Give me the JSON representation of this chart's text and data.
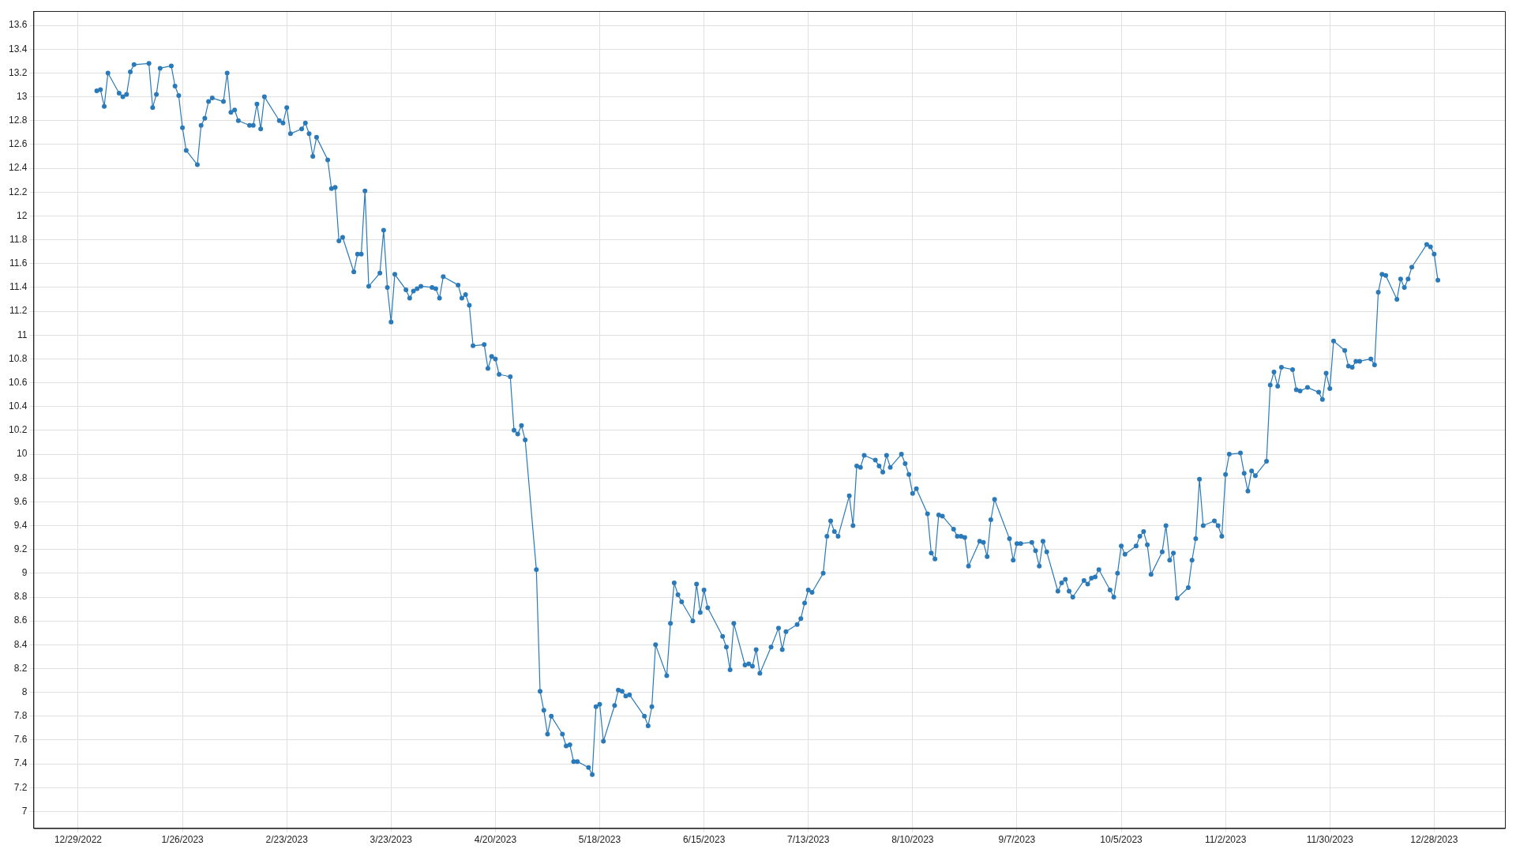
{
  "chart_data": {
    "type": "line",
    "marker": "circle",
    "line_style": "solid",
    "grid": true,
    "xlim": [
      "2022-12-17",
      "2024-01-16"
    ],
    "xticks": [
      {
        "value": "2022-12-29",
        "label": "12/29/2022"
      },
      {
        "value": "2023-01-26",
        "label": "1/26/2023"
      },
      {
        "value": "2023-02-23",
        "label": "2/23/2023"
      },
      {
        "value": "2023-03-23",
        "label": "3/23/2023"
      },
      {
        "value": "2023-04-20",
        "label": "4/20/2023"
      },
      {
        "value": "2023-05-18",
        "label": "5/18/2023"
      },
      {
        "value": "2023-06-15",
        "label": "6/15/2023"
      },
      {
        "value": "2023-07-13",
        "label": "7/13/2023"
      },
      {
        "value": "2023-08-10",
        "label": "8/10/2023"
      },
      {
        "value": "2023-09-07",
        "label": "9/7/2023"
      },
      {
        "value": "2023-10-05",
        "label": "10/5/2023"
      },
      {
        "value": "2023-11-02",
        "label": "11/2/2023"
      },
      {
        "value": "2023-11-30",
        "label": "11/30/2023"
      },
      {
        "value": "2023-12-28",
        "label": "12/28/2023"
      }
    ],
    "ylim": [
      6.86,
      13.72
    ],
    "yticks": [
      7,
      7.2,
      7.4,
      7.6,
      7.8,
      8,
      8.2,
      8.4,
      8.6,
      8.8,
      9,
      9.2,
      9.4,
      9.6,
      9.8,
      10,
      10.2,
      10.4,
      10.6,
      10.8,
      11,
      11.2,
      11.4,
      11.6,
      11.8,
      12,
      12.2,
      12.4,
      12.6,
      12.8,
      13,
      13.2,
      13.4,
      13.6
    ],
    "x": [
      "2023-01-03",
      "2023-01-04",
      "2023-01-05",
      "2023-01-06",
      "2023-01-09",
      "2023-01-10",
      "2023-01-11",
      "2023-01-12",
      "2023-01-13",
      "2023-01-17",
      "2023-01-18",
      "2023-01-19",
      "2023-01-20",
      "2023-01-23",
      "2023-01-24",
      "2023-01-25",
      "2023-01-26",
      "2023-01-27",
      "2023-01-30",
      "2023-01-31",
      "2023-02-01",
      "2023-02-02",
      "2023-02-03",
      "2023-02-06",
      "2023-02-07",
      "2023-02-08",
      "2023-02-09",
      "2023-02-10",
      "2023-02-13",
      "2023-02-14",
      "2023-02-15",
      "2023-02-16",
      "2023-02-17",
      "2023-02-21",
      "2023-02-22",
      "2023-02-23",
      "2023-02-24",
      "2023-02-27",
      "2023-02-28",
      "2023-03-01",
      "2023-03-02",
      "2023-03-03",
      "2023-03-06",
      "2023-03-07",
      "2023-03-08",
      "2023-03-09",
      "2023-03-10",
      "2023-03-13",
      "2023-03-14",
      "2023-03-15",
      "2023-03-16",
      "2023-03-17",
      "2023-03-20",
      "2023-03-21",
      "2023-03-22",
      "2023-03-23",
      "2023-03-24",
      "2023-03-27",
      "2023-03-28",
      "2023-03-29",
      "2023-03-30",
      "2023-03-31",
      "2023-04-03",
      "2023-04-04",
      "2023-04-05",
      "2023-04-06",
      "2023-04-10",
      "2023-04-11",
      "2023-04-12",
      "2023-04-13",
      "2023-04-14",
      "2023-04-17",
      "2023-04-18",
      "2023-04-19",
      "2023-04-20",
      "2023-04-21",
      "2023-04-24",
      "2023-04-25",
      "2023-04-26",
      "2023-04-27",
      "2023-04-28",
      "2023-05-01",
      "2023-05-02",
      "2023-05-03",
      "2023-05-04",
      "2023-05-05",
      "2023-05-08",
      "2023-05-09",
      "2023-05-10",
      "2023-05-11",
      "2023-05-12",
      "2023-05-15",
      "2023-05-16",
      "2023-05-17",
      "2023-05-18",
      "2023-05-19",
      "2023-05-22",
      "2023-05-23",
      "2023-05-24",
      "2023-05-25",
      "2023-05-26",
      "2023-05-30",
      "2023-05-31",
      "2023-06-01",
      "2023-06-02",
      "2023-06-05",
      "2023-06-06",
      "2023-06-07",
      "2023-06-08",
      "2023-06-09",
      "2023-06-12",
      "2023-06-13",
      "2023-06-14",
      "2023-06-15",
      "2023-06-16",
      "2023-06-20",
      "2023-06-21",
      "2023-06-22",
      "2023-06-23",
      "2023-06-26",
      "2023-06-27",
      "2023-06-28",
      "2023-06-29",
      "2023-06-30",
      "2023-07-03",
      "2023-07-05",
      "2023-07-06",
      "2023-07-07",
      "2023-07-10",
      "2023-07-11",
      "2023-07-12",
      "2023-07-13",
      "2023-07-14",
      "2023-07-17",
      "2023-07-18",
      "2023-07-19",
      "2023-07-20",
      "2023-07-21",
      "2023-07-24",
      "2023-07-25",
      "2023-07-26",
      "2023-07-27",
      "2023-07-28",
      "2023-07-31",
      "2023-08-01",
      "2023-08-02",
      "2023-08-03",
      "2023-08-04",
      "2023-08-07",
      "2023-08-08",
      "2023-08-09",
      "2023-08-10",
      "2023-08-11",
      "2023-08-14",
      "2023-08-15",
      "2023-08-16",
      "2023-08-17",
      "2023-08-18",
      "2023-08-21",
      "2023-08-22",
      "2023-08-23",
      "2023-08-24",
      "2023-08-25",
      "2023-08-28",
      "2023-08-29",
      "2023-08-30",
      "2023-08-31",
      "2023-09-01",
      "2023-09-05",
      "2023-09-06",
      "2023-09-07",
      "2023-09-08",
      "2023-09-11",
      "2023-09-12",
      "2023-09-13",
      "2023-09-14",
      "2023-09-15",
      "2023-09-18",
      "2023-09-19",
      "2023-09-20",
      "2023-09-21",
      "2023-09-22",
      "2023-09-25",
      "2023-09-26",
      "2023-09-27",
      "2023-09-28",
      "2023-09-29",
      "2023-10-02",
      "2023-10-03",
      "2023-10-04",
      "2023-10-05",
      "2023-10-06",
      "2023-10-09",
      "2023-10-10",
      "2023-10-11",
      "2023-10-12",
      "2023-10-13",
      "2023-10-16",
      "2023-10-17",
      "2023-10-18",
      "2023-10-19",
      "2023-10-20",
      "2023-10-23",
      "2023-10-24",
      "2023-10-25",
      "2023-10-26",
      "2023-10-27",
      "2023-10-30",
      "2023-10-31",
      "2023-11-01",
      "2023-11-02",
      "2023-11-03",
      "2023-11-06",
      "2023-11-07",
      "2023-11-08",
      "2023-11-09",
      "2023-11-10",
      "2023-11-13",
      "2023-11-14",
      "2023-11-15",
      "2023-11-16",
      "2023-11-17",
      "2023-11-20",
      "2023-11-21",
      "2023-11-22",
      "2023-11-24",
      "2023-11-27",
      "2023-11-28",
      "2023-11-29",
      "2023-11-30",
      "2023-12-01",
      "2023-12-04",
      "2023-12-05",
      "2023-12-06",
      "2023-12-07",
      "2023-12-08",
      "2023-12-11",
      "2023-12-12",
      "2023-12-13",
      "2023-12-14",
      "2023-12-15",
      "2023-12-18",
      "2023-12-19",
      "2023-12-20",
      "2023-12-21",
      "2023-12-22",
      "2023-12-26",
      "2023-12-27",
      "2023-12-28",
      "2023-12-29"
    ],
    "series": [
      {
        "color": "#2a7ab9",
        "values": [
          13.05,
          13.06,
          12.92,
          13.2,
          13.03,
          13.0,
          13.02,
          13.21,
          13.27,
          13.28,
          12.91,
          13.02,
          13.24,
          13.26,
          13.09,
          13.01,
          12.74,
          12.55,
          12.43,
          12.76,
          12.82,
          12.96,
          12.99,
          12.96,
          13.2,
          12.87,
          12.89,
          12.8,
          12.76,
          12.76,
          12.94,
          12.73,
          13.0,
          12.8,
          12.78,
          12.91,
          12.69,
          12.73,
          12.78,
          12.69,
          12.5,
          12.66,
          12.47,
          12.23,
          12.24,
          11.79,
          11.82,
          11.53,
          11.68,
          11.68,
          12.21,
          11.41,
          11.52,
          11.88,
          11.4,
          11.11,
          11.51,
          11.38,
          11.31,
          11.37,
          11.39,
          11.41,
          11.4,
          11.39,
          11.31,
          11.49,
          11.42,
          11.31,
          11.34,
          11.25,
          10.91,
          10.92,
          10.72,
          10.82,
          10.8,
          10.67,
          10.65,
          10.2,
          10.17,
          10.24,
          10.12,
          9.03,
          8.01,
          7.85,
          7.65,
          7.8,
          7.65,
          7.55,
          7.56,
          7.42,
          7.42,
          7.37,
          7.31,
          7.88,
          7.9,
          7.59,
          7.89,
          8.02,
          8.01,
          7.97,
          7.98,
          7.8,
          7.72,
          7.88,
          8.4,
          8.14,
          8.58,
          8.92,
          8.82,
          8.76,
          8.6,
          8.91,
          8.67,
          8.86,
          8.71,
          8.47,
          8.38,
          8.19,
          8.58,
          8.23,
          8.24,
          8.22,
          8.36,
          8.16,
          8.38,
          8.54,
          8.36,
          8.51,
          8.57,
          8.62,
          8.75,
          8.86,
          8.84,
          9.0,
          9.31,
          9.44,
          9.35,
          9.31,
          9.65,
          9.4,
          9.9,
          9.89,
          9.99,
          9.95,
          9.9,
          9.85,
          9.99,
          9.89,
          10.0,
          9.92,
          9.83,
          9.67,
          9.71,
          9.5,
          9.17,
          9.12,
          9.49,
          9.48,
          9.37,
          9.31,
          9.31,
          9.3,
          9.06,
          9.27,
          9.26,
          9.14,
          9.45,
          9.62,
          9.29,
          9.11,
          9.25,
          9.25,
          9.26,
          9.19,
          9.06,
          9.27,
          9.18,
          8.85,
          8.92,
          8.95,
          8.85,
          8.8,
          8.94,
          8.91,
          8.96,
          8.97,
          9.03,
          8.86,
          8.8,
          9.0,
          9.23,
          9.16,
          9.23,
          9.31,
          9.35,
          9.24,
          8.99,
          9.18,
          9.4,
          9.11,
          9.17,
          8.79,
          8.88,
          9.11,
          9.29,
          9.79,
          9.4,
          9.44,
          9.4,
          9.31,
          9.83,
          10.0,
          10.01,
          9.84,
          9.69,
          9.86,
          9.82,
          9.94,
          10.58,
          10.69,
          10.57,
          10.73,
          10.71,
          10.54,
          10.53,
          10.56,
          10.52,
          10.46,
          10.68,
          10.55,
          10.95,
          10.87,
          10.74,
          10.73,
          10.78,
          10.78,
          10.8,
          10.75,
          11.36,
          11.51,
          11.5,
          11.3,
          11.47,
          11.4,
          11.47,
          11.57,
          11.76,
          11.74,
          11.68,
          11.46
        ]
      }
    ]
  }
}
